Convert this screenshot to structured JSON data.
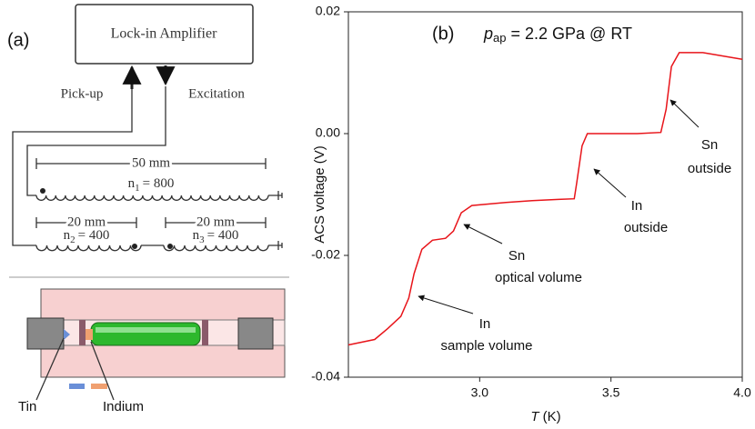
{
  "panel_a": {
    "label": "(a)",
    "amplifier": "Lock-in Amplifier",
    "pickup": "Pick-up",
    "excitation": "Excitation",
    "coil1": {
      "length": "50 mm",
      "n": "n",
      "sub": "1",
      "turns": "= 800"
    },
    "coil2": {
      "length": "20 mm",
      "n": "n",
      "sub": "2",
      "turns": "= 400"
    },
    "coil3": {
      "length": "20 mm",
      "n": "n",
      "sub": "3",
      "turns": "= 400"
    },
    "tin": "Tin",
    "indium": "Indium"
  },
  "chart_data": {
    "type": "line",
    "panel_label": "(b)",
    "title": {
      "symbol": "p",
      "subscript": "ap",
      "text": " = 2.2 GPa @ RT"
    },
    "x_label": {
      "symbol": "T",
      "unit": " (K)"
    },
    "y_label": "ACS voltage (V)",
    "x": [
      2.5,
      2.6,
      2.65,
      2.7,
      2.73,
      2.75,
      2.78,
      2.82,
      2.87,
      2.9,
      2.93,
      2.97,
      3.1,
      3.2,
      3.3,
      3.36,
      3.37,
      3.39,
      3.41,
      3.5,
      3.6,
      3.69,
      3.71,
      3.73,
      3.76,
      3.85,
      4.0
    ],
    "series": [
      {
        "name": "ACS voltage",
        "color": "#e8141a",
        "values": [
          -0.0347,
          -0.0338,
          -0.032,
          -0.03,
          -0.027,
          -0.023,
          -0.019,
          -0.0175,
          -0.0172,
          -0.016,
          -0.013,
          -0.0118,
          -0.0113,
          -0.011,
          -0.0108,
          -0.0107,
          -0.008,
          -0.002,
          0.0,
          0.0,
          0.0,
          0.0002,
          0.004,
          0.011,
          0.0133,
          0.0133,
          0.0122
        ]
      }
    ],
    "xlim": [
      2.5,
      4.0
    ],
    "xticks": [
      {
        "value": 3,
        "label": "3.0"
      },
      3.5,
      {
        "value": 4,
        "label": "4.0"
      }
    ],
    "ylim": [
      -0.04,
      0.02
    ],
    "yticks": [
      -0.04,
      -0.02,
      {
        "value": 0,
        "label": "0.00"
      },
      0.02
    ],
    "annotations": [
      {
        "lines": [
          "In",
          "sample volume"
        ]
      },
      {
        "lines": [
          "Sn",
          "optical volume"
        ]
      },
      {
        "lines": [
          "In",
          "outside"
        ]
      },
      {
        "lines": [
          "Sn",
          "outside"
        ]
      }
    ]
  }
}
